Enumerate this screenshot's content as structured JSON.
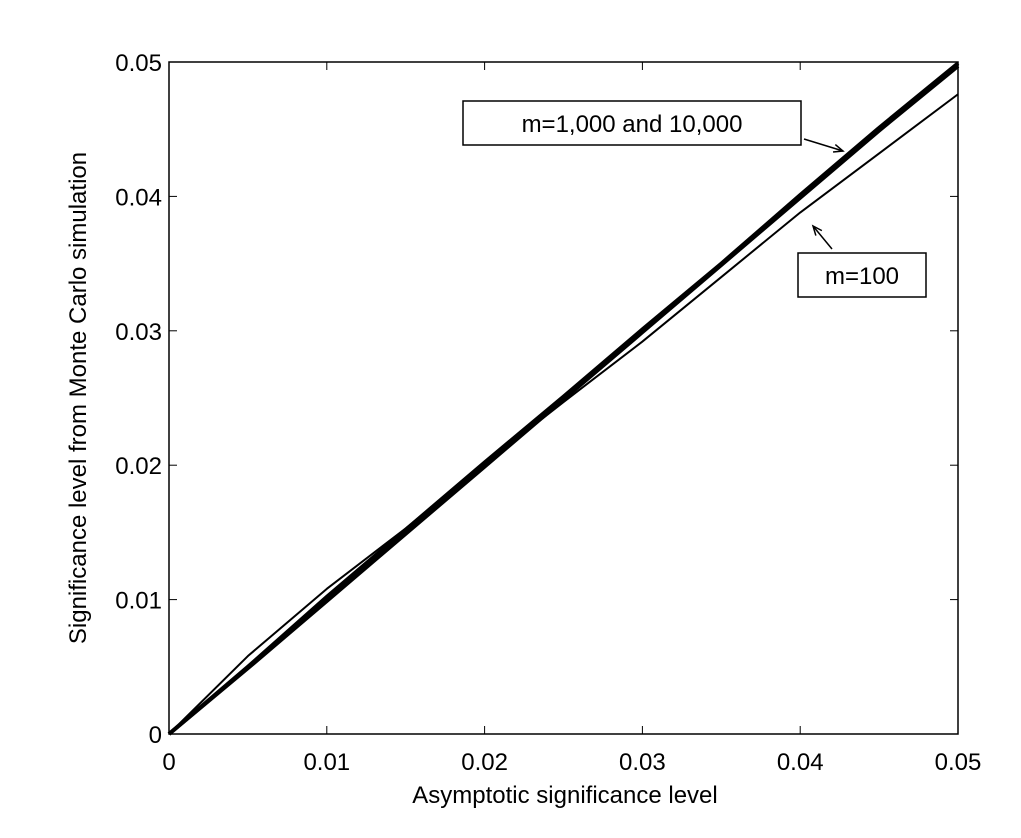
{
  "chart_data": {
    "type": "line",
    "x_label": "Asymptotic significance level",
    "y_label": "Significance level from Monte Carlo simulation",
    "x": [
      0,
      0.005,
      0.01,
      0.015,
      0.02,
      0.025,
      0.03,
      0.035,
      0.04,
      0.045,
      0.05
    ],
    "series": [
      {
        "color": "#000000",
        "width": 4,
        "values": [
          0,
          0.005,
          0.0102,
          0.0152,
          0.0202,
          0.0251,
          0.0301,
          0.035,
          0.0401,
          0.0451,
          0.0499
        ]
      },
      {
        "color": "#000000",
        "width": 4,
        "values": [
          0,
          0.0049,
          0.0099,
          0.0149,
          0.0199,
          0.0249,
          0.0299,
          0.0349,
          0.0399,
          0.0449,
          0.0497
        ]
      },
      {
        "color": "#000000",
        "width": 2,
        "values": [
          0,
          0.0058,
          0.0108,
          0.0153,
          0.0201,
          0.0247,
          0.0292,
          0.034,
          0.0388,
          0.0432,
          0.0476
        ]
      }
    ],
    "annotations": [
      "m=1,000 and 10,000",
      "m=100"
    ],
    "xlim": [
      0,
      0.05
    ],
    "ylim": [
      0,
      0.05
    ],
    "xticks": [
      0,
      0.01,
      0.02,
      0.03,
      0.04,
      0.05
    ],
    "yticks": [
      0,
      0.01,
      0.02,
      0.03,
      0.04,
      0.05
    ]
  }
}
